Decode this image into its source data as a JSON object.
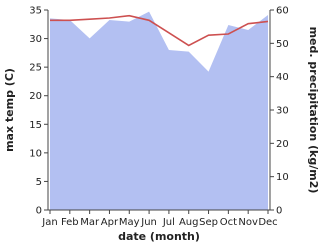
{
  "chart_data": {
    "type": "area-line",
    "categories": [
      "Jan",
      "Feb",
      "Mar",
      "Apr",
      "May",
      "Jun",
      "Jul",
      "Aug",
      "Sep",
      "Oct",
      "Nov",
      "Dec"
    ],
    "xlabel": "date (month)",
    "ylabel": "max temp (C)",
    "y2label": "med. precipitation (kg/m2)",
    "ylim": [
      0,
      35
    ],
    "yticks": [
      0,
      5,
      10,
      15,
      20,
      25,
      30,
      35
    ],
    "y2lim": [
      0,
      60
    ],
    "y2ticks": [
      0,
      10,
      20,
      30,
      40,
      50,
      60
    ],
    "series": [
      {
        "type": "area",
        "axis": "y2",
        "color": "#b3c0f2",
        "values": [
          57.5,
          57,
          51.5,
          57,
          56.5,
          59.5,
          48,
          47.5,
          41.5,
          55.5,
          54,
          58.5
        ]
      },
      {
        "type": "line",
        "axis": "y",
        "color": "#cd5050",
        "values": [
          33.2,
          33.2,
          33.4,
          33.6,
          34.0,
          33.2,
          31.0,
          28.8,
          30.6,
          30.8,
          32.6,
          33.0
        ]
      }
    ]
  }
}
